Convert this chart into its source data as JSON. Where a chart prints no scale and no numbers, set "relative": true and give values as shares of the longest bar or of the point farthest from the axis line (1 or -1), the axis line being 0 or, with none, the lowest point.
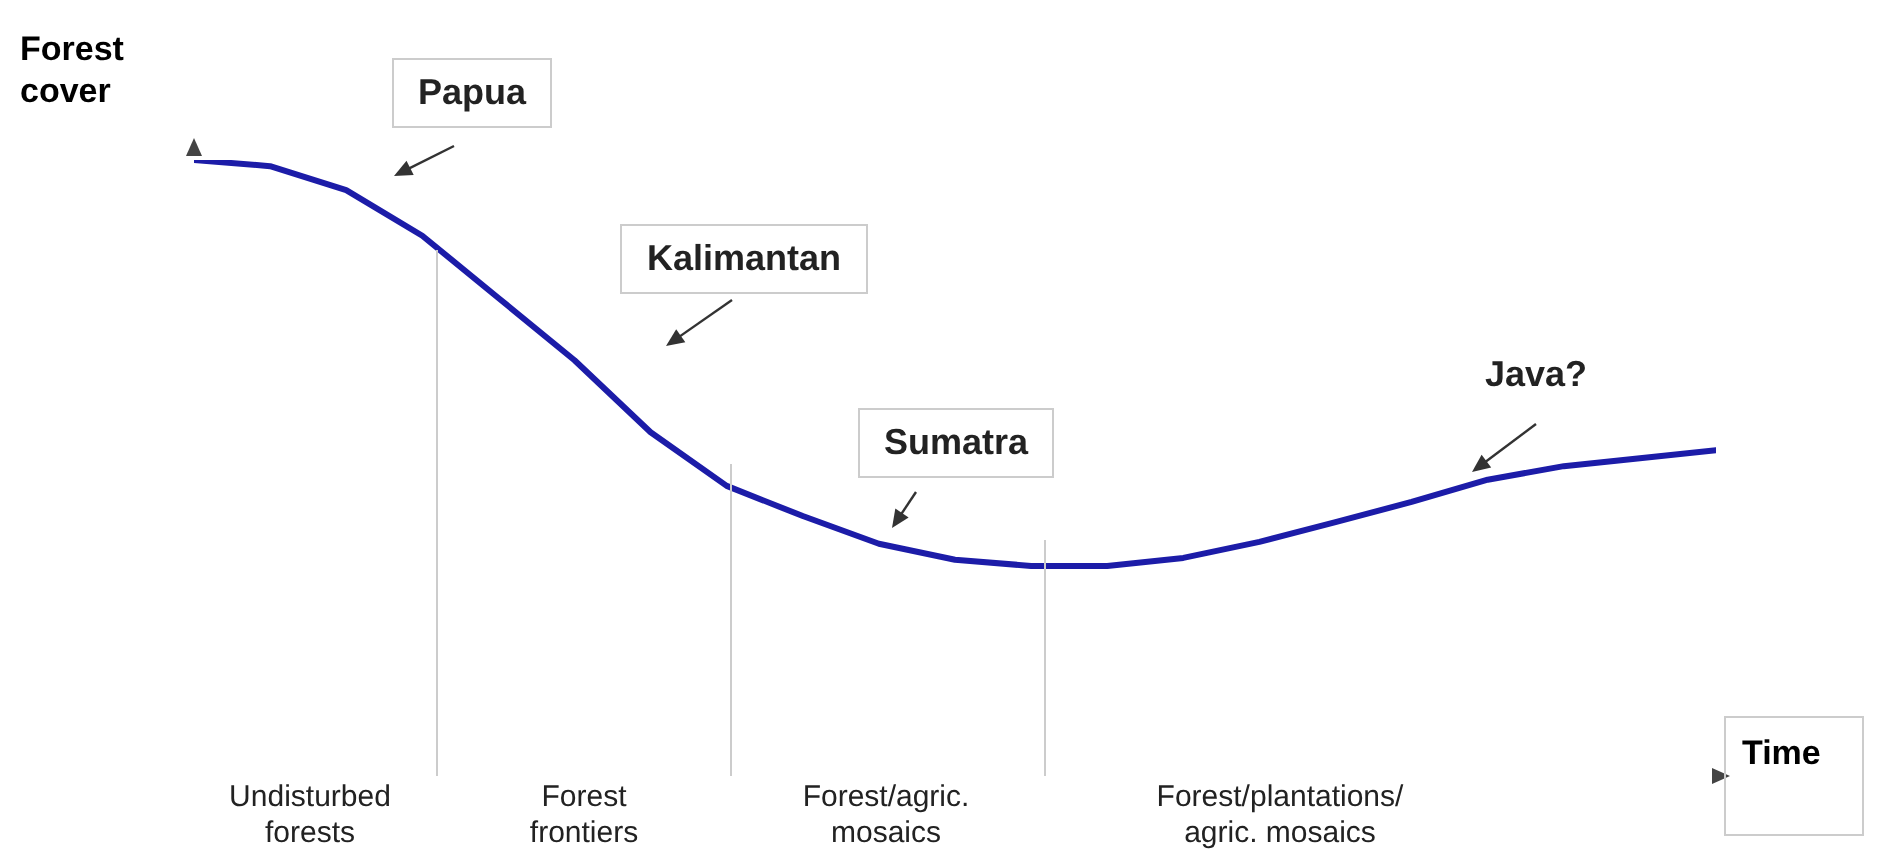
{
  "chart_data": {
    "type": "line",
    "relative": true,
    "ylabel": "Forest\ncover",
    "xlabel": "Time",
    "marker": "none",
    "line_style": "solid",
    "categories": [
      null,
      null,
      null,
      null,
      null,
      null,
      null,
      null,
      null,
      null,
      null,
      null,
      null,
      null,
      null,
      null,
      null,
      null,
      null,
      null,
      null
    ],
    "series": [
      {
        "color": "#1c1ca8",
        "values": [
          1,
          0.99,
          0.951,
          0.877,
          0.776,
          0.675,
          0.558,
          0.471,
          0.422,
          0.377,
          0.351,
          0.341,
          0.341,
          0.354,
          0.38,
          0.412,
          0.445,
          0.481,
          0.503,
          0.516,
          0.529
        ]
      }
    ],
    "annotations": [
      "Papua",
      "Kalimantan",
      "Sumatra",
      "Java?",
      "Undisturbed\nforests",
      "Forest\nfrontiers",
      "Forest/agric.\nmosaics",
      "Forest/plantations/\nagric. mosaics"
    ]
  }
}
